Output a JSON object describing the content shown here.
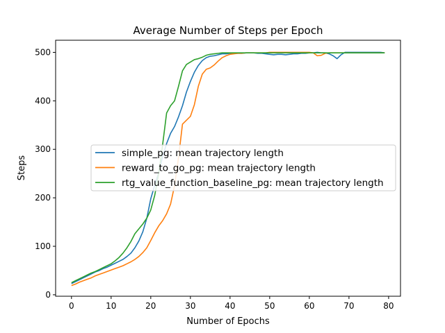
{
  "chart_data": {
    "type": "line",
    "title": "Average Number of Steps per Epoch",
    "xlabel": "Number of Epochs",
    "ylabel": "Steps",
    "xlim": [
      -4,
      83
    ],
    "ylim": [
      -3,
      525
    ],
    "x_ticks": [
      0,
      10,
      20,
      30,
      40,
      50,
      60,
      70,
      80
    ],
    "y_ticks": [
      0,
      100,
      200,
      300,
      400,
      500
    ],
    "grid": false,
    "legend_position": "center",
    "series": [
      {
        "name": "simple_pg: mean trajectory length",
        "color": "#1f77b4",
        "x": [
          0,
          1,
          2,
          3,
          4,
          5,
          6,
          7,
          8,
          9,
          10,
          11,
          12,
          13,
          14,
          15,
          16,
          17,
          18,
          19,
          20,
          21,
          22,
          23,
          24,
          25,
          26,
          27,
          28,
          29,
          30,
          31,
          32,
          33,
          34,
          35,
          36,
          37,
          38,
          39,
          40,
          41,
          42,
          43,
          44,
          45,
          46,
          47,
          48,
          49,
          50,
          51,
          52,
          53,
          54,
          55,
          56,
          57,
          58,
          59,
          60,
          61,
          62,
          63,
          64,
          65,
          66,
          67,
          68,
          69,
          70,
          71,
          72,
          73,
          74,
          75,
          76,
          77,
          78,
          79
        ],
        "y": [
          23,
          27,
          31,
          35,
          39,
          43,
          47,
          50,
          54,
          57,
          61,
          65,
          69,
          73,
          79,
          86,
          97,
          111,
          130,
          158,
          198,
          226,
          252,
          285,
          312,
          333,
          347,
          367,
          390,
          418,
          440,
          459,
          473,
          483,
          489,
          492,
          493,
          495,
          497,
          497,
          498,
          498,
          498,
          498,
          499,
          499,
          499,
          498,
          498,
          497,
          496,
          495,
          496,
          496,
          495,
          496,
          497,
          497,
          498,
          498,
          499,
          499,
          500,
          499,
          499,
          497,
          493,
          487,
          495,
          500,
          500,
          500,
          500,
          500,
          500,
          500,
          500,
          500,
          500,
          499
        ]
      },
      {
        "name": "reward_to_go_pg: mean trajectory length",
        "color": "#ff7f0e",
        "x": [
          0,
          1,
          2,
          3,
          4,
          5,
          6,
          7,
          8,
          9,
          10,
          11,
          12,
          13,
          14,
          15,
          16,
          17,
          18,
          19,
          20,
          21,
          22,
          23,
          24,
          25,
          26,
          27,
          28,
          29,
          30,
          31,
          32,
          33,
          34,
          35,
          36,
          37,
          38,
          39,
          40,
          41,
          42,
          43,
          44,
          45,
          46,
          47,
          48,
          49,
          50,
          51,
          52,
          53,
          54,
          55,
          56,
          57,
          58,
          59,
          60,
          61,
          62,
          63,
          64,
          65,
          66,
          67,
          68,
          69,
          70,
          71,
          72,
          73,
          74,
          75,
          76,
          77,
          78,
          79
        ],
        "y": [
          19,
          22,
          26,
          29,
          32,
          35,
          39,
          42,
          45,
          48,
          51,
          54,
          57,
          60,
          64,
          68,
          73,
          79,
          87,
          97,
          112,
          128,
          142,
          153,
          167,
          187,
          225,
          283,
          352,
          360,
          368,
          392,
          430,
          455,
          465,
          468,
          474,
          482,
          489,
          493,
          496,
          497,
          498,
          498,
          499,
          499,
          499,
          499,
          499,
          499,
          500,
          500,
          500,
          500,
          500,
          500,
          500,
          500,
          500,
          500,
          500,
          499,
          493,
          494,
          498,
          499,
          499,
          499,
          499,
          499,
          499,
          499,
          499,
          499,
          499,
          499,
          499,
          499,
          499,
          499
        ]
      },
      {
        "name": "rtg_value_function_baseline_pg: mean trajectory length",
        "color": "#2ca02c",
        "x": [
          0,
          1,
          2,
          3,
          4,
          5,
          6,
          7,
          8,
          9,
          10,
          11,
          12,
          13,
          14,
          15,
          16,
          17,
          18,
          19,
          20,
          21,
          22,
          23,
          24,
          25,
          26,
          27,
          28,
          29,
          30,
          31,
          32,
          33,
          34,
          35,
          36,
          37,
          38,
          39,
          40,
          41,
          42,
          43,
          44,
          45,
          46,
          47,
          48,
          49,
          50,
          51,
          52,
          53,
          54,
          55,
          56,
          57,
          58,
          59,
          60,
          61,
          62,
          63,
          64,
          65,
          66,
          67,
          68,
          69,
          70,
          71,
          72,
          73,
          74,
          75,
          76,
          77,
          78,
          79
        ],
        "y": [
          25,
          29,
          33,
          37,
          41,
          45,
          48,
          52,
          56,
          60,
          64,
          70,
          77,
          86,
          97,
          110,
          126,
          136,
          146,
          158,
          175,
          205,
          250,
          310,
          375,
          390,
          400,
          430,
          462,
          475,
          480,
          485,
          487,
          490,
          494,
          496,
          497,
          498,
          499,
          499,
          499,
          499,
          499,
          499,
          499,
          499,
          499,
          499,
          499,
          499,
          499,
          499,
          499,
          499,
          499,
          499,
          499,
          499,
          499,
          499,
          499,
          499,
          499,
          499,
          499,
          499,
          499,
          499,
          499,
          499,
          499,
          499,
          499,
          499,
          499,
          499,
          499,
          499,
          499,
          499
        ]
      }
    ]
  }
}
